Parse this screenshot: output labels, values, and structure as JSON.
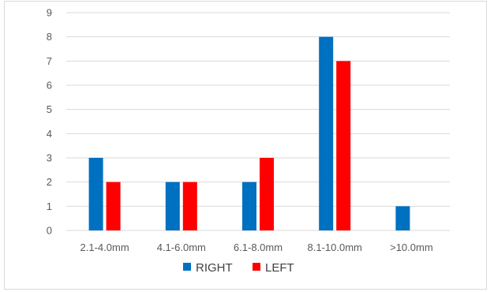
{
  "chart_data": {
    "type": "bar",
    "categories": [
      "2.1-4.0mm",
      "4.1-6.0mm",
      "6.1-8.0mm",
      "8.1-10.0mm",
      ">10.0mm"
    ],
    "series": [
      {
        "name": "RIGHT",
        "values": [
          3,
          2,
          2,
          8,
          1
        ],
        "color": "#0070C0"
      },
      {
        "name": "LEFT",
        "values": [
          2,
          2,
          3,
          7,
          0
        ],
        "color": "#FF0000"
      }
    ],
    "ylim": [
      0,
      9
    ],
    "yticks": [
      0,
      1,
      2,
      3,
      4,
      5,
      6,
      7,
      8,
      9
    ],
    "grid": true,
    "legend": "bottom-center"
  }
}
